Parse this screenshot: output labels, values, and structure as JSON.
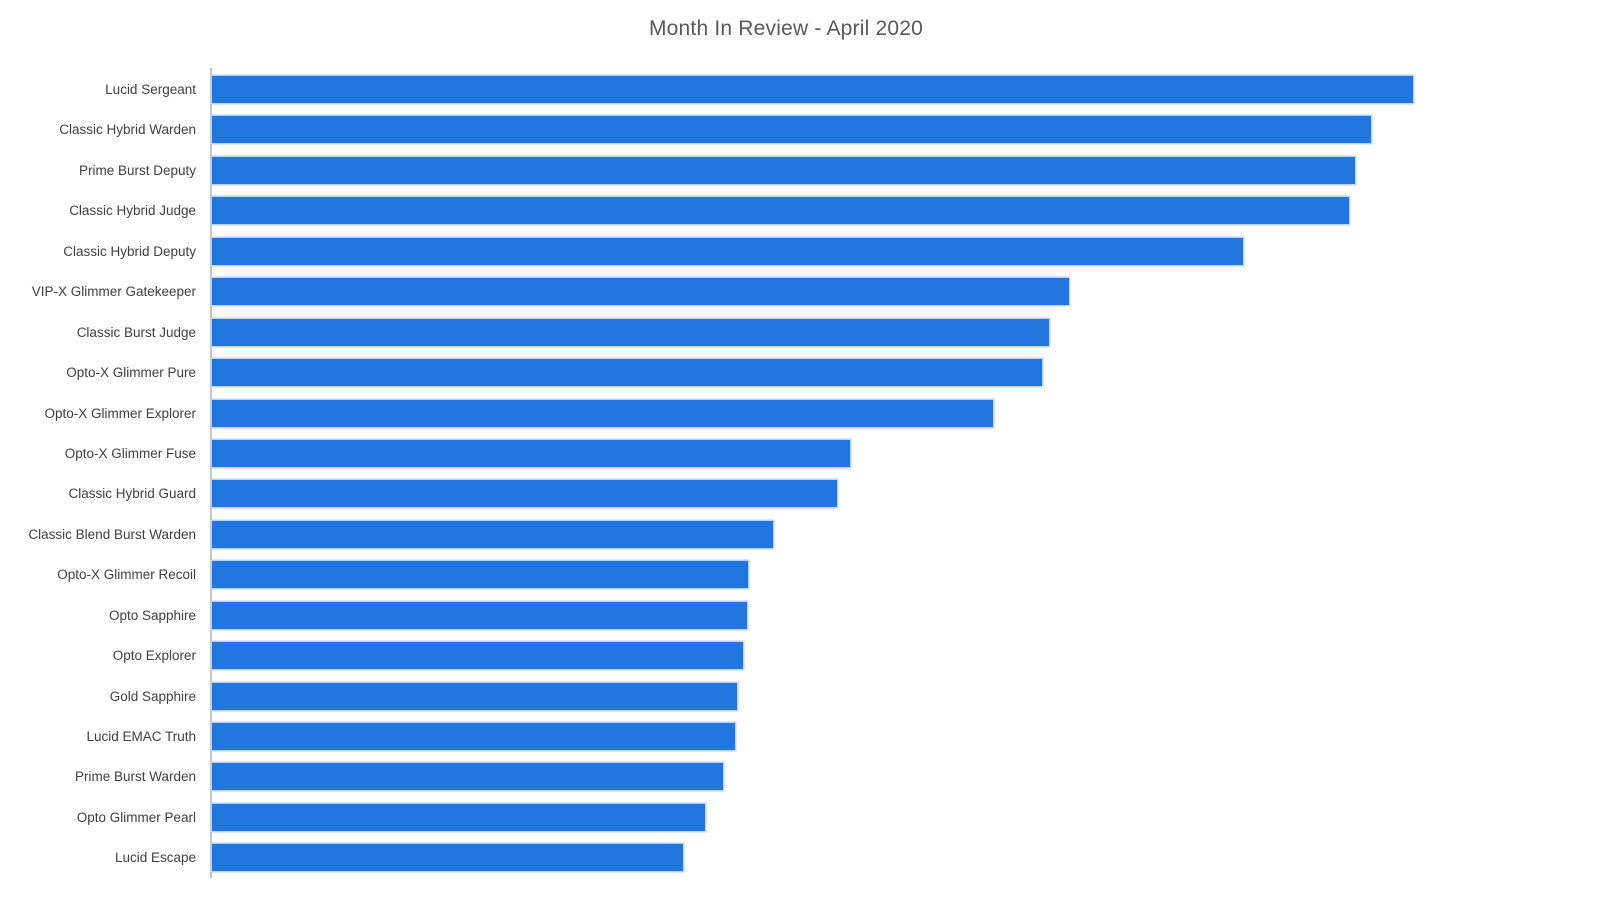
{
  "chart_data": {
    "type": "bar",
    "orientation": "horizontal",
    "title": "Month In Review - April 2020",
    "categories": [
      "Lucid Sergeant",
      "Classic Hybrid Warden",
      "Prime Burst Deputy",
      "Classic Hybrid Judge",
      "Classic Hybrid Deputy",
      "VIP-X Glimmer Gatekeeper",
      "Classic Burst Judge",
      "Opto-X Glimmer Pure",
      "Opto-X Glimmer Explorer",
      "Opto-X Glimmer Fuse",
      "Classic Hybrid Guard",
      "Classic Blend Burst Warden",
      "Opto-X Glimmer Recoil",
      "Opto Sapphire",
      "Opto Explorer",
      "Gold Sapphire",
      "Lucid EMAC Truth",
      "Prime Burst Warden",
      "Opto Glimmer Pearl",
      "Lucid Escape"
    ],
    "values": [
      100,
      96.5,
      95.1,
      94.6,
      85.8,
      71.3,
      69.7,
      69.1,
      65.0,
      53.1,
      52.0,
      46.7,
      44.6,
      44.5,
      44.2,
      43.7,
      43.5,
      42.5,
      41.0,
      39.2
    ],
    "values_note": "relative units, percent of longest bar; value axis is not labeled in the chart",
    "xlabel": "",
    "ylabel": "",
    "xlim": [
      0,
      112.2
    ],
    "grid": false,
    "legend": false,
    "colors": {
      "bar_fill": "#2176e0",
      "bar_outline": "#bad0f3",
      "axis_line": "#c6c6c6",
      "title_text": "#595959",
      "label_text": "#404040",
      "background": "#ffffff"
    }
  }
}
